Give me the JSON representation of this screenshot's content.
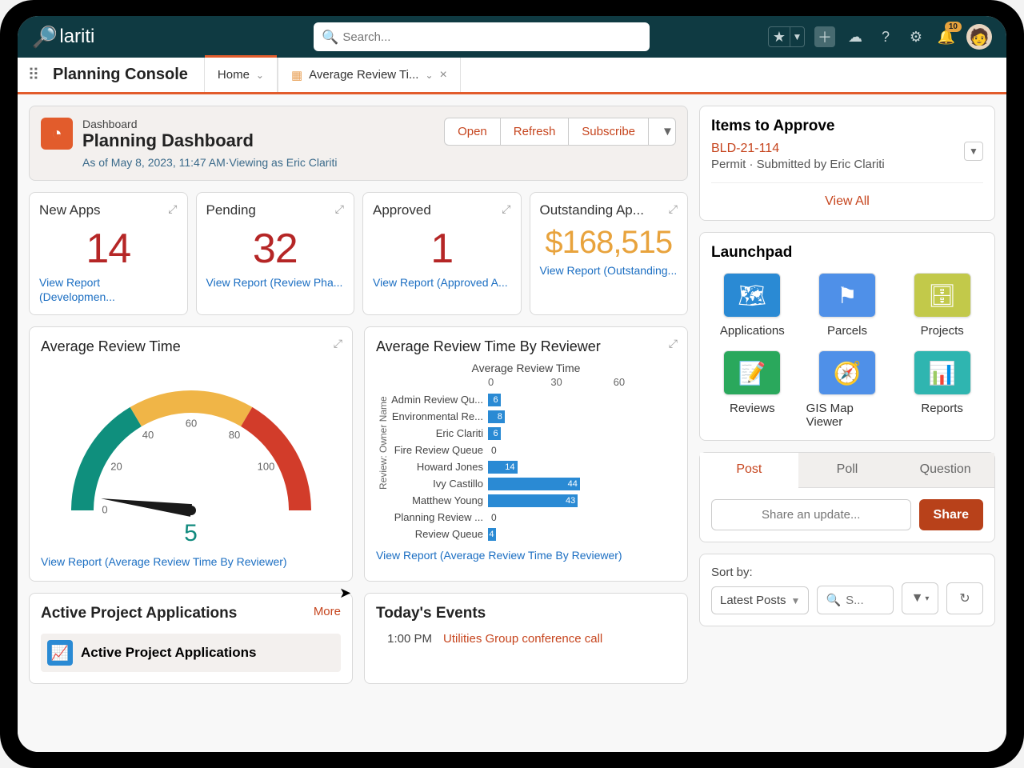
{
  "topbar": {
    "logo": "lariti",
    "search_placeholder": "Search...",
    "notification_count": "10"
  },
  "nav": {
    "app_name": "Planning Console",
    "tabs": [
      {
        "label": "Home",
        "active": true
      },
      {
        "label": "Average Review Ti...",
        "active": false
      }
    ]
  },
  "dashboard_header": {
    "kicker": "Dashboard",
    "title": "Planning Dashboard",
    "as_of": "As of May 8, 2023, 11:47 AM·Viewing as Eric Clariti",
    "buttons": {
      "open": "Open",
      "refresh": "Refresh",
      "subscribe": "Subscribe"
    }
  },
  "kpis": [
    {
      "title": "New Apps",
      "value": "14",
      "link": "View Report (Developmen...",
      "color": "#b52626"
    },
    {
      "title": "Pending",
      "value": "32",
      "link": "View Report (Review Pha...",
      "color": "#b52626"
    },
    {
      "title": "Approved",
      "value": "1",
      "link": "View Report (Approved A...",
      "color": "#b52626"
    },
    {
      "title": "Outstanding Ap...",
      "value": "$168,515",
      "link": "View Report (Outstanding...",
      "color": "#e8a33d"
    }
  ],
  "gauge_chart": {
    "title": "Average Review Time",
    "value": "5",
    "min": 0,
    "max": 120,
    "ticks": [
      0,
      20,
      40,
      60,
      80,
      100
    ],
    "segments": [
      {
        "start": 0,
        "end": 33,
        "color": "#0f8f7d"
      },
      {
        "start": 33,
        "end": 67,
        "color": "#f0b547"
      },
      {
        "start": 67,
        "end": 100,
        "color": "#d23c2a"
      }
    ],
    "link": "View Report (Average Review Time By Reviewer)"
  },
  "bar_chart": {
    "title": "Average Review Time By Reviewer",
    "subtitle": "Average Review Time",
    "ylabel": "Review: Owner Name",
    "xmax": 90,
    "xticks": [
      0,
      30,
      60
    ],
    "bar_color": "#2a8ad4",
    "rows": [
      {
        "label": "Admin Review Qu...",
        "value": 6
      },
      {
        "label": "Environmental Re...",
        "value": 8
      },
      {
        "label": "Eric Clariti",
        "value": 6
      },
      {
        "label": "Fire Review Queue",
        "value": 0
      },
      {
        "label": "Howard Jones",
        "value": 14
      },
      {
        "label": "Ivy Castillo",
        "value": 44
      },
      {
        "label": "Matthew Young",
        "value": 43
      },
      {
        "label": "Planning Review ...",
        "value": 0
      },
      {
        "label": "Review Queue",
        "value": 4
      }
    ],
    "link": "View Report (Average Review Time By Reviewer)"
  },
  "active_projects": {
    "title": "Active Project Applications",
    "more": "More",
    "subtitle": "Active Project Applications"
  },
  "todays_events": {
    "title": "Today's Events",
    "events": [
      {
        "time": "1:00 PM",
        "desc": "Utilities Group conference call"
      }
    ]
  },
  "items_to_approve": {
    "title": "Items to Approve",
    "ref": "BLD-21-114",
    "meta": "Permit  ·  Submitted by Eric Clariti",
    "view_all": "View All"
  },
  "launchpad": {
    "title": "Launchpad",
    "items": [
      {
        "label": "Applications",
        "color": "#2a8ad4",
        "icon": "🗺"
      },
      {
        "label": "Parcels",
        "color": "#4f90e8",
        "icon": "⚑"
      },
      {
        "label": "Projects",
        "color": "#c2c94a",
        "icon": "🗄"
      },
      {
        "label": "Reviews",
        "color": "#2aa85c",
        "icon": "📝"
      },
      {
        "label": "GIS Map Viewer",
        "color": "#4f90e8",
        "icon": "🧭"
      },
      {
        "label": "Reports",
        "color": "#2fb5b0",
        "icon": "📊"
      }
    ]
  },
  "post_panel": {
    "tabs": [
      "Post",
      "Poll",
      "Question"
    ],
    "placeholder": "Share an update...",
    "share": "Share"
  },
  "sort_panel": {
    "label": "Sort by:",
    "selected": "Latest Posts",
    "search_placeholder": "S..."
  }
}
